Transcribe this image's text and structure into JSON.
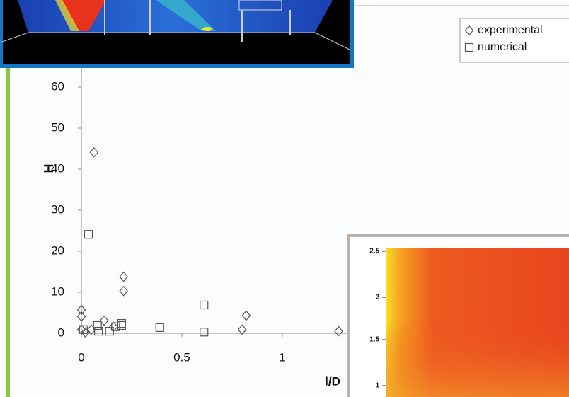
{
  "chart_data": {
    "type": "scatter",
    "x_label": "l/D",
    "y_label": "H",
    "xlim": [
      0,
      1.4
    ],
    "ylim": [
      0,
      65
    ],
    "xticks": [
      0,
      0.5,
      1
    ],
    "yticks": [
      0,
      10,
      20,
      30,
      40,
      50,
      60
    ],
    "legend": "top-right",
    "series": [
      {
        "name": "experimental",
        "marker": "diamond",
        "color": "#555555",
        "x": [
          0,
          0,
          0,
          0.02,
          0.063,
          0.05,
          0.113,
          0.16,
          0.21,
          0.21,
          0.8,
          0.82,
          1.28
        ],
        "values": [
          5.7,
          4.1,
          0.9,
          0.2,
          44.1,
          0.9,
          3.1,
          1.6,
          13.8,
          10.3,
          0.9,
          4.3,
          0.5
        ]
      },
      {
        "name": "numerical",
        "marker": "square",
        "color": "#555555",
        "x": [
          0.035,
          0.08,
          0.085,
          0.14,
          0.17,
          0.2,
          0.2,
          0.39,
          0.61,
          0.61,
          0.01
        ],
        "values": [
          24.1,
          1.9,
          0.5,
          0.5,
          1.6,
          1.9,
          2.4,
          1.4,
          6.9,
          0.3,
          0.9
        ]
      }
    ]
  },
  "inset_heatmap": {
    "yticks": [
      2.5,
      2,
      1.5,
      1
    ]
  }
}
